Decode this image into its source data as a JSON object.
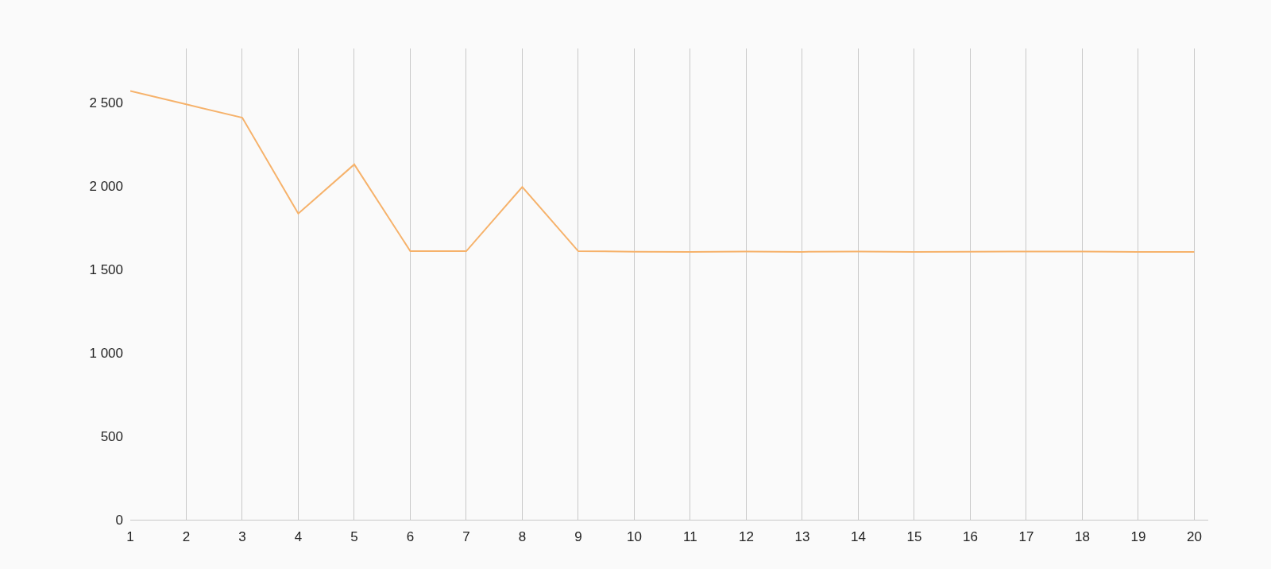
{
  "chart_data": {
    "type": "line",
    "x": [
      1,
      2,
      3,
      4,
      5,
      6,
      7,
      8,
      9,
      10,
      11,
      12,
      13,
      14,
      15,
      16,
      17,
      18,
      19,
      20
    ],
    "series": [
      {
        "color": "#f6b26b",
        "values": [
          2570,
          2490,
          2410,
          1835,
          2130,
          1610,
          1610,
          1995,
          1610,
          1607,
          1606,
          1608,
          1606,
          1608,
          1606,
          1607,
          1608,
          1608,
          1606,
          1605
        ]
      }
    ],
    "xlim": [
      1,
      20.25
    ],
    "xticks": [
      1,
      2,
      3,
      4,
      5,
      6,
      7,
      8,
      9,
      10,
      11,
      12,
      13,
      14,
      15,
      16,
      17,
      18,
      19,
      20
    ],
    "ylim": [
      0,
      2825
    ],
    "yticks": [
      {
        "value": 0,
        "label": "0"
      },
      {
        "value": 500,
        "label": "500"
      },
      {
        "value": 1000,
        "label": "1 000"
      },
      {
        "value": 1500,
        "label": "1 500"
      },
      {
        "value": 2000,
        "label": "2 000"
      },
      {
        "value": 2500,
        "label": "2 500"
      }
    ],
    "grid": "x",
    "marker": "none",
    "line_style": "solid"
  }
}
